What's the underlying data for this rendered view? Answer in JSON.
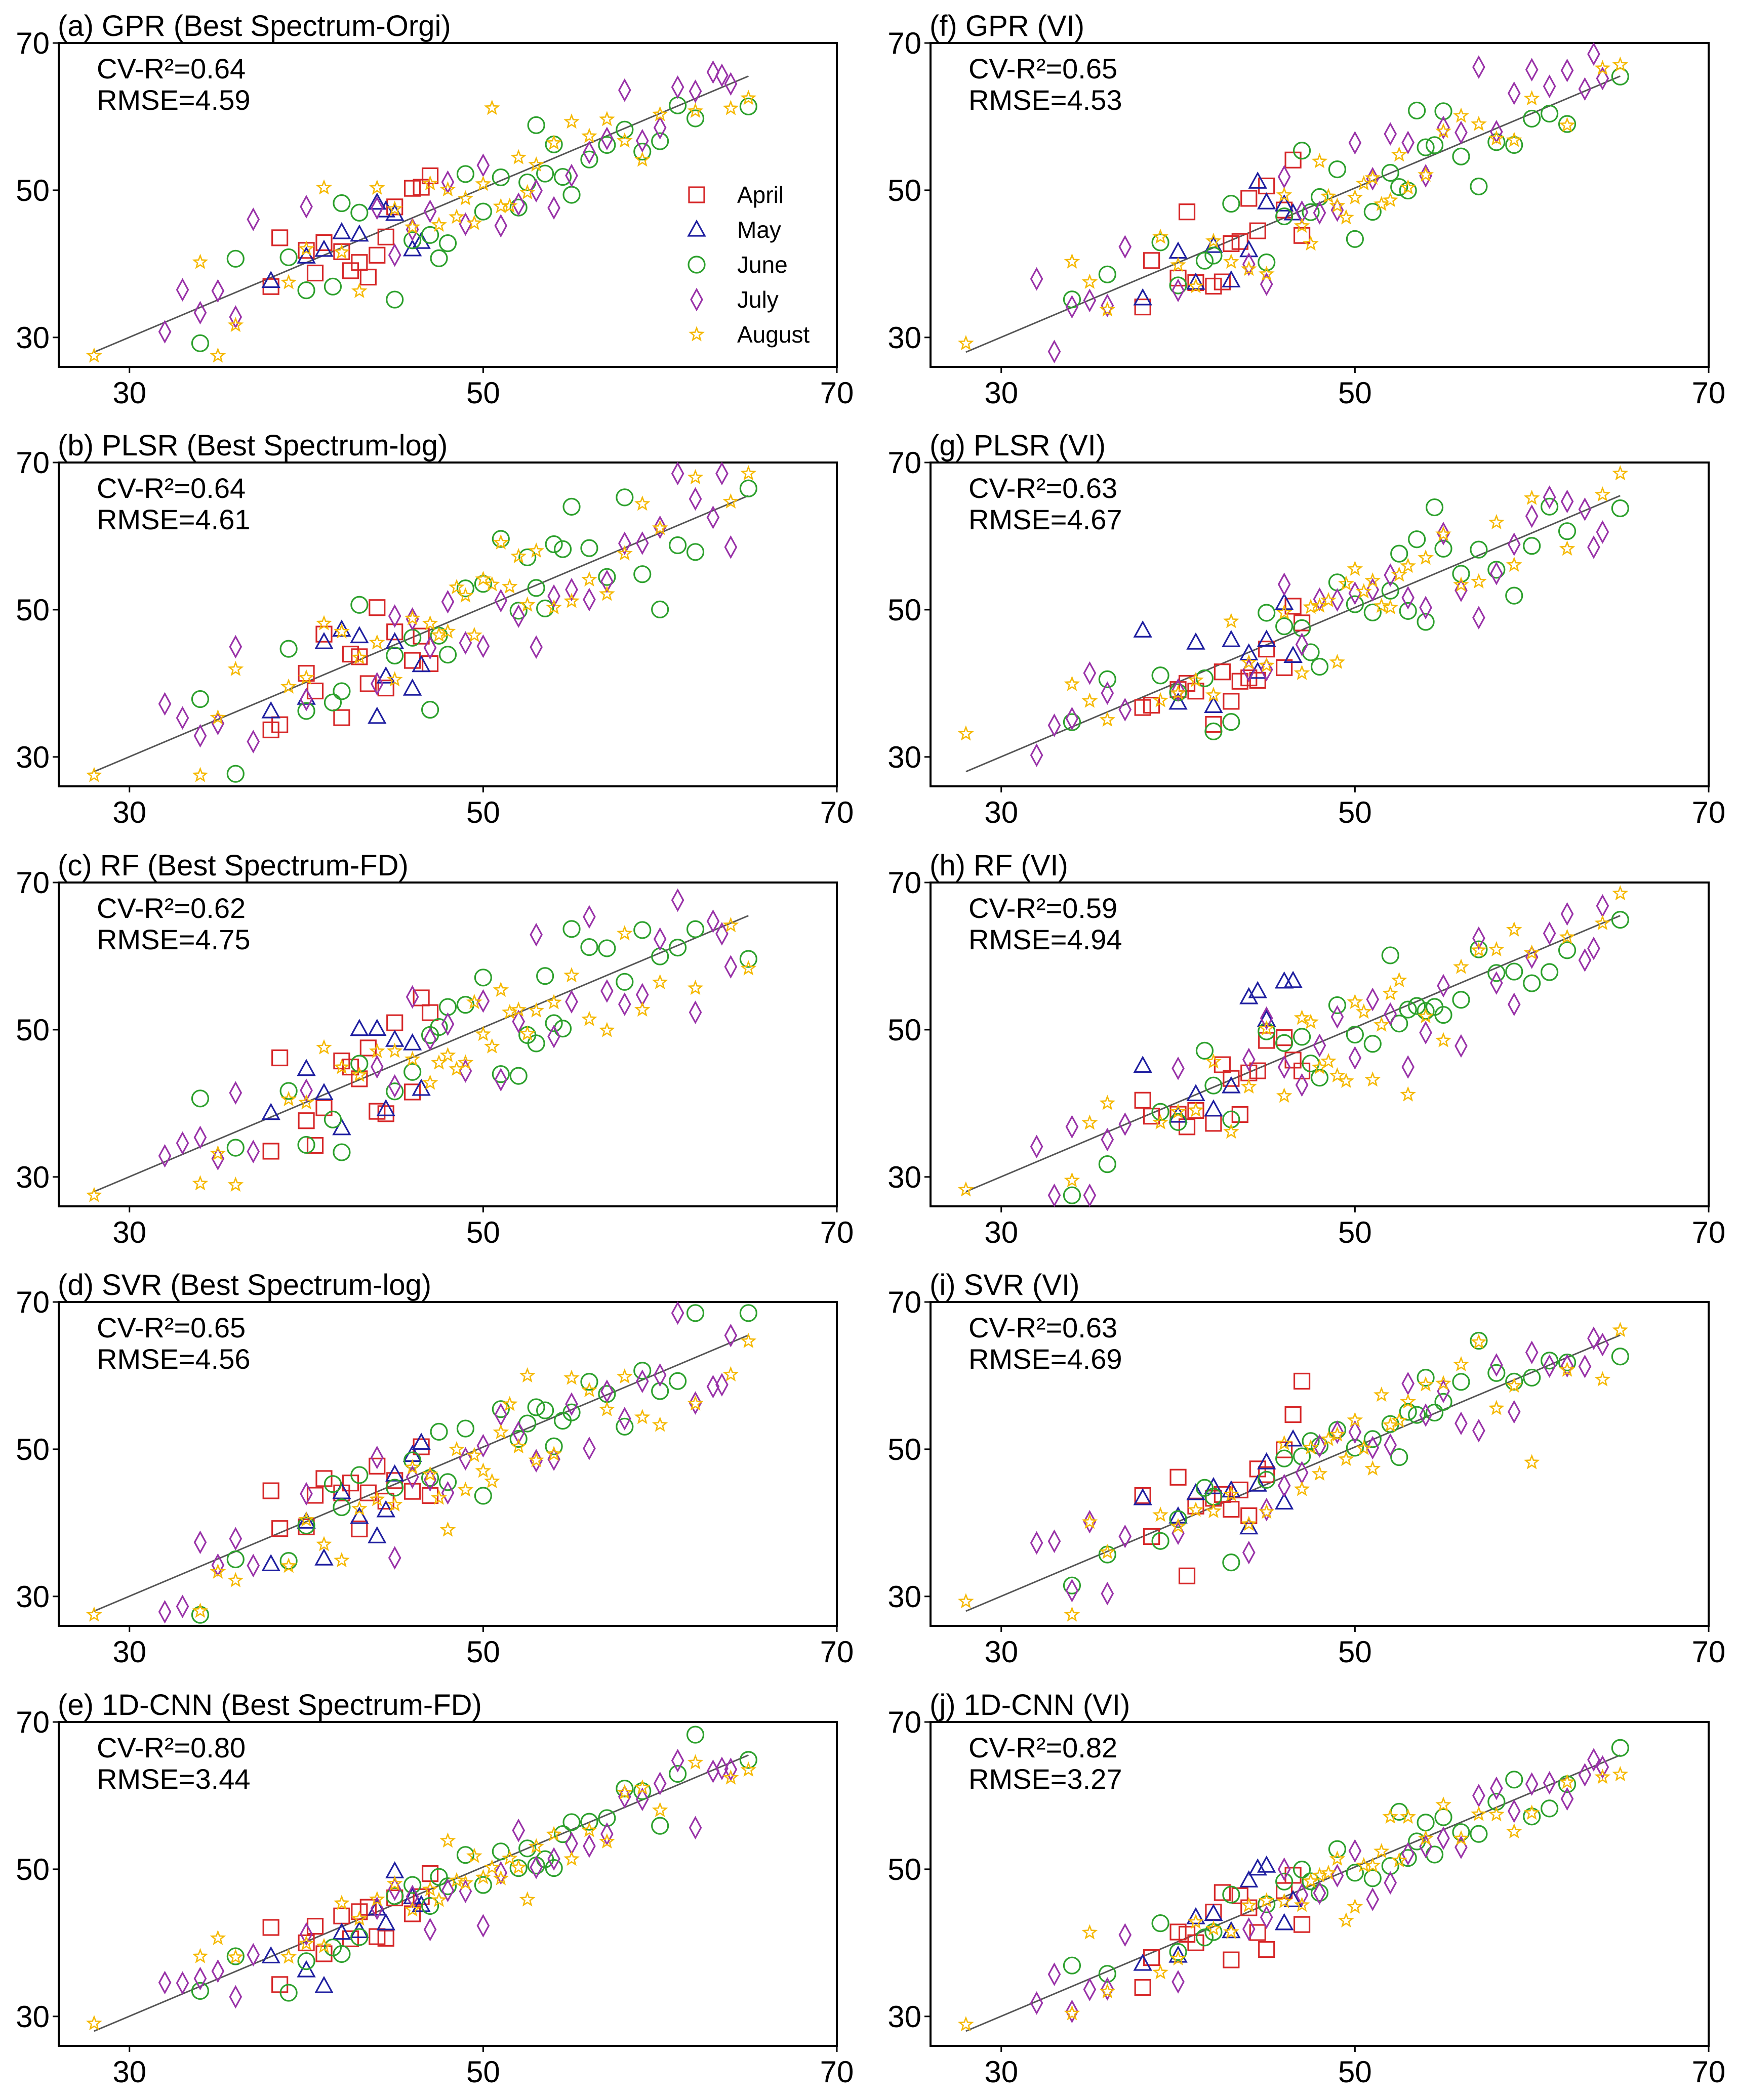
{
  "colors": {
    "April": "#d62728",
    "May": "#1f1fa0",
    "June": "#2ca02c",
    "July": "#9932a8",
    "August": "#f5b800",
    "fit": "#555555"
  },
  "chart_data": [
    {
      "type": "scatter",
      "title": "(a) GPR (Best Spectrum-Orgi)",
      "r2_text": "CV-R²=0.64",
      "rmse_text": "RMSE=4.59",
      "noise": 4.6,
      "seed": 11,
      "xlim": [
        26,
        70
      ],
      "ylim": [
        26,
        70
      ],
      "xticks": [
        "30",
        "50",
        "70"
      ],
      "yticks": [
        "30",
        "50",
        "70"
      ],
      "fit_line": [
        [
          28,
          28
        ],
        [
          65,
          65.5
        ]
      ],
      "legend": [
        "April",
        "May",
        "June",
        "July",
        "August"
      ]
    },
    {
      "type": "scatter",
      "title": "(b) PLSR (Best Spectrum-log)",
      "r2_text": "CV-R²=0.64",
      "rmse_text": "RMSE=4.61",
      "noise": 4.6,
      "seed": 23,
      "xlim": [
        26,
        70
      ],
      "ylim": [
        26,
        70
      ],
      "xticks": [
        "30",
        "50",
        "70"
      ],
      "yticks": [
        "30",
        "50",
        "70"
      ],
      "fit_line": [
        [
          28,
          28
        ],
        [
          65,
          65.5
        ]
      ]
    },
    {
      "type": "scatter",
      "title": "(c) RF (Best Spectrum-FD)",
      "r2_text": "CV-R²=0.62",
      "rmse_text": "RMSE=4.75",
      "noise": 4.8,
      "seed": 37,
      "xlim": [
        26,
        70
      ],
      "ylim": [
        26,
        70
      ],
      "xticks": [
        "30",
        "50",
        "70"
      ],
      "yticks": [
        "30",
        "50",
        "70"
      ],
      "fit_line": [
        [
          28,
          28
        ],
        [
          65,
          65.5
        ]
      ]
    },
    {
      "type": "scatter",
      "title": "(d) SVR (Best Spectrum-log)",
      "r2_text": "CV-R²=0.65",
      "rmse_text": "RMSE=4.56",
      "noise": 4.5,
      "seed": 41,
      "xlim": [
        26,
        70
      ],
      "ylim": [
        26,
        70
      ],
      "xticks": [
        "30",
        "50",
        "70"
      ],
      "yticks": [
        "30",
        "50",
        "70"
      ],
      "fit_line": [
        [
          28,
          28
        ],
        [
          65,
          65.5
        ]
      ]
    },
    {
      "type": "scatter",
      "title": "(e) 1D-CNN (Best Spectrum-FD)",
      "r2_text": "CV-R²=0.80",
      "rmse_text": "RMSE=3.44",
      "noise": 3.4,
      "seed": 53,
      "xlim": [
        26,
        70
      ],
      "ylim": [
        26,
        70
      ],
      "xticks": [
        "30",
        "50",
        "70"
      ],
      "yticks": [
        "30",
        "50",
        "70"
      ],
      "fit_line": [
        [
          28,
          28
        ],
        [
          65,
          65.5
        ]
      ]
    },
    {
      "type": "scatter",
      "title": "(f) GPR (VI)",
      "r2_text": "CV-R²=0.65",
      "rmse_text": "RMSE=4.53",
      "noise": 4.5,
      "seed": 67,
      "xlim": [
        26,
        70
      ],
      "ylim": [
        26,
        70
      ],
      "xticks": [
        "30",
        "50",
        "70"
      ],
      "yticks": [
        "30",
        "50",
        "70"
      ],
      "fit_line": [
        [
          28,
          28
        ],
        [
          65,
          65.5
        ]
      ]
    },
    {
      "type": "scatter",
      "title": "(g) PLSR (VI)",
      "r2_text": "CV-R²=0.63",
      "rmse_text": "RMSE=4.67",
      "noise": 4.7,
      "seed": 71,
      "xlim": [
        26,
        70
      ],
      "ylim": [
        26,
        70
      ],
      "xticks": [
        "30",
        "50",
        "70"
      ],
      "yticks": [
        "30",
        "50",
        "70"
      ],
      "fit_line": [
        [
          28,
          28
        ],
        [
          65,
          65.5
        ]
      ]
    },
    {
      "type": "scatter",
      "title": "(h) RF (VI)",
      "r2_text": "CV-R²=0.59",
      "rmse_text": "RMSE=4.94",
      "noise": 5.0,
      "seed": 83,
      "xlim": [
        26,
        70
      ],
      "ylim": [
        26,
        70
      ],
      "xticks": [
        "30",
        "50",
        "70"
      ],
      "yticks": [
        "30",
        "50",
        "70"
      ],
      "fit_line": [
        [
          28,
          28
        ],
        [
          65,
          65.5
        ]
      ]
    },
    {
      "type": "scatter",
      "title": "(i) SVR (VI)",
      "r2_text": "CV-R²=0.63",
      "rmse_text": "RMSE=4.69",
      "noise": 4.7,
      "seed": 97,
      "xlim": [
        26,
        70
      ],
      "ylim": [
        26,
        70
      ],
      "xticks": [
        "30",
        "50",
        "70"
      ],
      "yticks": [
        "30",
        "50",
        "70"
      ],
      "fit_line": [
        [
          28,
          28
        ],
        [
          65,
          65.5
        ]
      ]
    },
    {
      "type": "scatter",
      "title": "(j) 1D-CNN (VI)",
      "r2_text": "CV-R²=0.82",
      "rmse_text": "RMSE=3.27",
      "noise": 3.2,
      "seed": 101,
      "xlim": [
        26,
        70
      ],
      "ylim": [
        26,
        70
      ],
      "xticks": [
        "30",
        "50",
        "70"
      ],
      "yticks": [
        "30",
        "50",
        "70"
      ],
      "fit_line": [
        [
          28,
          28
        ],
        [
          65,
          65.5
        ]
      ]
    }
  ],
  "measured_by_month": {
    "April": [
      38,
      38.5,
      40,
      40.5,
      41,
      42,
      42.5,
      43,
      43.5,
      44,
      44.5,
      45,
      46,
      46.5,
      47
    ],
    "May": [
      38,
      40,
      41,
      42,
      43,
      44,
      44.5,
      45,
      46,
      46.5
    ],
    "June": [
      34,
      36,
      39,
      40,
      41.5,
      42,
      43,
      45,
      46,
      47,
      47.5,
      48,
      49,
      50,
      51,
      52,
      52.5,
      53,
      53.5,
      54,
      54.5,
      55,
      56,
      57,
      58,
      59,
      60,
      61,
      62,
      65
    ],
    "July": [
      32,
      33,
      34,
      35,
      36,
      37,
      40,
      44,
      45,
      46,
      47,
      48,
      49,
      50,
      51,
      52,
      53,
      54,
      55,
      56,
      57,
      58,
      59,
      60,
      61,
      62,
      63,
      63.5,
      64
    ],
    "August": [
      28,
      34,
      35,
      36,
      39,
      40,
      41,
      42,
      43,
      44,
      45,
      46,
      47,
      47.5,
      48,
      48.5,
      49,
      49.5,
      50,
      50.5,
      51,
      51.5,
      52,
      52.5,
      53,
      54,
      55,
      56,
      57,
      58,
      59,
      60,
      62,
      64,
      65
    ]
  }
}
